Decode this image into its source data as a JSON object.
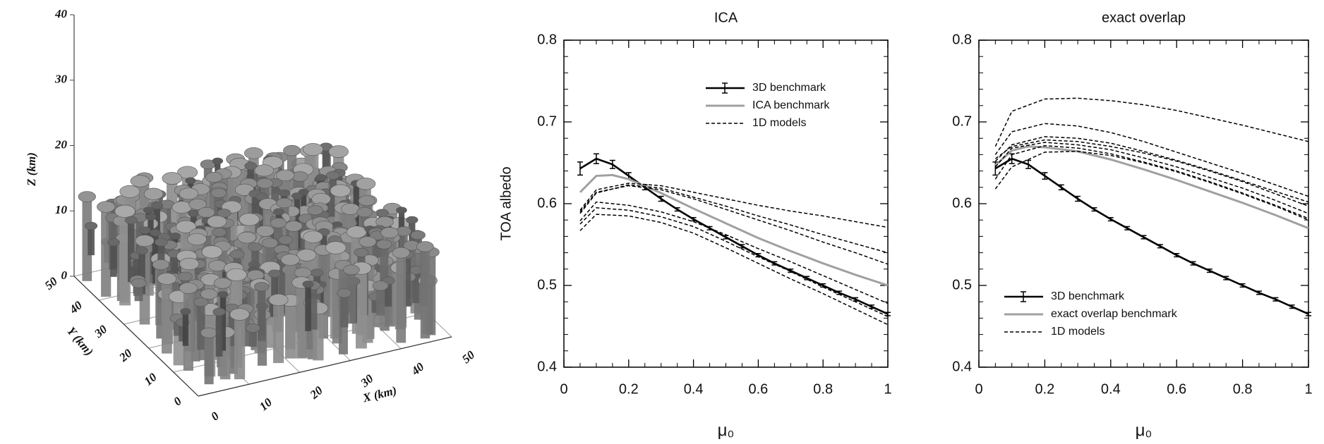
{
  "chart_data": [
    {
      "type": "surface3d",
      "xlabel": "X (km)",
      "ylabel": "Y (km)",
      "zlabel": "Z (km)",
      "xlim": [
        0,
        50
      ],
      "ylim": [
        0,
        50
      ],
      "zlim": [
        0,
        40
      ],
      "xticks": [
        0,
        10,
        20,
        30,
        40,
        50
      ],
      "yticks": [
        0,
        10,
        20,
        30,
        40,
        50
      ],
      "zticks": [
        0,
        10,
        20,
        30,
        40
      ]
    },
    {
      "type": "line",
      "title": "ICA",
      "xlabel": "μ₀",
      "ylabel": "TOA albedo",
      "xlim": [
        0,
        1
      ],
      "ylim": [
        0.4,
        0.8
      ],
      "xticks": [
        0,
        0.2,
        0.4,
        0.6,
        0.8,
        1
      ],
      "yticks": [
        0.4,
        0.5,
        0.6,
        0.7,
        0.8
      ],
      "legend": "upper right",
      "series": [
        {
          "name": "3D benchmark",
          "color": "#000000",
          "dash": false,
          "x": [
            0.05,
            0.1,
            0.15,
            0.2,
            0.25,
            0.3,
            0.35,
            0.4,
            0.45,
            0.5,
            0.55,
            0.6,
            0.65,
            0.7,
            0.75,
            0.8,
            0.85,
            0.9,
            0.95,
            1
          ],
          "values": [
            0.643,
            0.655,
            0.648,
            0.634,
            0.62,
            0.606,
            0.593,
            0.581,
            0.57,
            0.559,
            0.548,
            0.537,
            0.527,
            0.518,
            0.509,
            0.5,
            0.491,
            0.483,
            0.474,
            0.465
          ],
          "errors": [
            0.008,
            0.006,
            0.005,
            0.004,
            0.003,
            0.003,
            0.002,
            0.002,
            0.002,
            0.002,
            0.002,
            0.002,
            0.002,
            0.002,
            0.002,
            0.002,
            0.002,
            0.002,
            0.002,
            0.002
          ]
        },
        {
          "name": "ICA benchmark",
          "color": "#a0a0a0",
          "dash": false,
          "x": [
            0.05,
            0.1,
            0.15,
            0.2,
            0.3,
            0.4,
            0.5,
            0.6,
            0.7,
            0.8,
            0.9,
            1
          ],
          "values": [
            0.614,
            0.634,
            0.635,
            0.63,
            0.613,
            0.594,
            0.576,
            0.558,
            0.542,
            0.527,
            0.513,
            0.5
          ]
        },
        {
          "name": "1D models",
          "color": "#000000",
          "dash": true,
          "x": [
            0.05,
            0.1,
            0.2,
            0.3,
            0.4,
            0.5,
            0.6,
            0.7,
            0.8,
            0.9,
            1
          ],
          "values": [
            [
              0.592,
              0.617,
              0.625,
              0.622,
              0.614,
              0.606,
              0.598,
              0.591,
              0.585,
              0.578,
              0.571
            ],
            [
              0.588,
              0.613,
              0.623,
              0.619,
              0.608,
              0.597,
              0.585,
              0.574,
              0.562,
              0.551,
              0.54
            ],
            [
              0.59,
              0.614,
              0.622,
              0.617,
              0.606,
              0.593,
              0.58,
              0.567,
              0.553,
              0.54,
              0.526
            ],
            [
              0.579,
              0.602,
              0.598,
              0.59,
              0.578,
              0.562,
              0.545,
              0.529,
              0.512,
              0.495,
              0.478
            ],
            [
              0.575,
              0.595,
              0.592,
              0.584,
              0.572,
              0.554,
              0.535,
              0.517,
              0.498,
              0.48,
              0.462
            ],
            [
              0.567,
              0.587,
              0.585,
              0.577,
              0.564,
              0.546,
              0.527,
              0.508,
              0.49,
              0.471,
              0.452
            ]
          ]
        }
      ]
    },
    {
      "type": "line",
      "title": "exact overlap",
      "xlabel": "μ₀",
      "xlim": [
        0,
        1
      ],
      "ylim": [
        0.4,
        0.8
      ],
      "xticks": [
        0,
        0.2,
        0.4,
        0.6,
        0.8,
        1
      ],
      "yticks": [
        0.4,
        0.5,
        0.6,
        0.7,
        0.8
      ],
      "legend": "lower left",
      "series": [
        {
          "name": "3D benchmark",
          "color": "#000000",
          "dash": false,
          "x": [
            0.05,
            0.1,
            0.15,
            0.2,
            0.25,
            0.3,
            0.35,
            0.4,
            0.45,
            0.5,
            0.55,
            0.6,
            0.65,
            0.7,
            0.75,
            0.8,
            0.85,
            0.9,
            0.95,
            1
          ],
          "values": [
            0.643,
            0.655,
            0.648,
            0.634,
            0.62,
            0.606,
            0.593,
            0.581,
            0.57,
            0.559,
            0.548,
            0.537,
            0.527,
            0.518,
            0.509,
            0.5,
            0.491,
            0.483,
            0.474,
            0.465
          ],
          "errors": [
            0.008,
            0.006,
            0.005,
            0.004,
            0.003,
            0.003,
            0.002,
            0.002,
            0.002,
            0.002,
            0.002,
            0.002,
            0.002,
            0.002,
            0.002,
            0.002,
            0.002,
            0.002,
            0.002,
            0.002
          ]
        },
        {
          "name": "exact overlap benchmark",
          "color": "#a0a0a0",
          "dash": false,
          "x": [
            0.05,
            0.1,
            0.15,
            0.2,
            0.3,
            0.4,
            0.5,
            0.6,
            0.7,
            0.8,
            0.9,
            1
          ],
          "values": [
            0.647,
            0.665,
            0.67,
            0.669,
            0.664,
            0.654,
            0.642,
            0.629,
            0.615,
            0.601,
            0.586,
            0.57
          ]
        },
        {
          "name": "1D models",
          "color": "#000000",
          "dash": true,
          "x": [
            0.05,
            0.1,
            0.2,
            0.3,
            0.4,
            0.5,
            0.6,
            0.7,
            0.8,
            0.9,
            1
          ],
          "values": [
            [
              0.67,
              0.713,
              0.728,
              0.729,
              0.726,
              0.721,
              0.714,
              0.705,
              0.696,
              0.686,
              0.676
            ],
            [
              0.66,
              0.688,
              0.698,
              0.695,
              0.687,
              0.676,
              0.663,
              0.65,
              0.637,
              0.623,
              0.609
            ],
            [
              0.652,
              0.672,
              0.682,
              0.68,
              0.674,
              0.664,
              0.653,
              0.641,
              0.628,
              0.615,
              0.602
            ],
            [
              0.655,
              0.67,
              0.678,
              0.676,
              0.67,
              0.662,
              0.652,
              0.64,
              0.627,
              0.612,
              0.597
            ],
            [
              0.645,
              0.668,
              0.675,
              0.672,
              0.666,
              0.656,
              0.645,
              0.632,
              0.619,
              0.604,
              0.588
            ],
            [
              0.63,
              0.66,
              0.671,
              0.668,
              0.661,
              0.651,
              0.64,
              0.627,
              0.613,
              0.598,
              0.582
            ],
            [
              0.618,
              0.645,
              0.663,
              0.664,
              0.659,
              0.65,
              0.639,
              0.626,
              0.612,
              0.597,
              0.58
            ]
          ]
        }
      ]
    }
  ]
}
